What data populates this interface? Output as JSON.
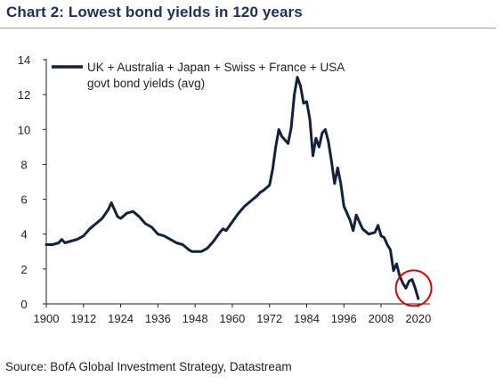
{
  "header": {
    "title": "Chart 2: Lowest bond yields in 120 years"
  },
  "footer": {
    "source": "Source: BofA Global Investment Strategy, Datastream"
  },
  "colors": {
    "series": "#14213d",
    "title": "#1e2f59",
    "highlight_circle": "#e00000"
  },
  "chart_data": {
    "type": "line",
    "title": "Chart 2: Lowest bond yields in 120 years",
    "xlabel": "",
    "ylabel": "",
    "xlim": [
      1900,
      2022
    ],
    "ylim": [
      0,
      14
    ],
    "x_ticks": [
      "1900",
      "1912",
      "1924",
      "1936",
      "1948",
      "1960",
      "1972",
      "1984",
      "1996",
      "2008",
      "2020"
    ],
    "y_ticks": [
      "0",
      "2",
      "4",
      "6",
      "8",
      "10",
      "12",
      "14"
    ],
    "grid": false,
    "legend": {
      "position": "top-left",
      "entries": [
        "UK + Australia + Japan + Swiss + France + USA",
        "govt bond yields (avg)"
      ]
    },
    "annotation": "circle-around-2020-low",
    "series": [
      {
        "name": "UK + Australia + Japan + Swiss + France + USA govt bond yields (avg)",
        "x": [
          1900,
          1902,
          1904,
          1905,
          1906,
          1908,
          1910,
          1912,
          1914,
          1916,
          1918,
          1920,
          1921,
          1922,
          1923,
          1924,
          1926,
          1928,
          1930,
          1931,
          1932,
          1934,
          1936,
          1938,
          1940,
          1942,
          1944,
          1946,
          1947,
          1948,
          1950,
          1952,
          1954,
          1956,
          1957,
          1958,
          1960,
          1962,
          1964,
          1966,
          1968,
          1969,
          1970,
          1972,
          1973,
          1974,
          1975,
          1976,
          1978,
          1979,
          1980,
          1981,
          1982,
          1983,
          1984,
          1985,
          1986,
          1987,
          1988,
          1989,
          1990,
          1991,
          1992,
          1993,
          1994,
          1995,
          1996,
          1998,
          1999,
          2000,
          2002,
          2004,
          2006,
          2007,
          2008,
          2009,
          2010,
          2011,
          2012,
          2013,
          2014,
          2015,
          2016,
          2017,
          2018,
          2019,
          2020
        ],
        "y": [
          3.4,
          3.4,
          3.5,
          3.7,
          3.5,
          3.6,
          3.7,
          3.9,
          4.3,
          4.6,
          4.9,
          5.4,
          5.8,
          5.4,
          5.0,
          4.9,
          5.2,
          5.3,
          5.0,
          4.8,
          4.6,
          4.4,
          4.0,
          3.9,
          3.7,
          3.5,
          3.4,
          3.1,
          3.0,
          3.0,
          3.0,
          3.2,
          3.6,
          4.1,
          4.3,
          4.2,
          4.7,
          5.2,
          5.6,
          5.9,
          6.2,
          6.4,
          6.5,
          6.8,
          7.7,
          9.0,
          10.0,
          9.6,
          9.2,
          10.1,
          12.0,
          13.0,
          12.5,
          11.5,
          11.6,
          10.6,
          8.5,
          9.5,
          9.0,
          9.8,
          10.0,
          9.3,
          8.2,
          6.9,
          7.8,
          6.9,
          5.6,
          4.8,
          4.2,
          5.1,
          4.3,
          4.0,
          4.1,
          4.5,
          3.9,
          3.8,
          3.4,
          3.1,
          1.9,
          2.3,
          1.6,
          1.2,
          0.9,
          1.3,
          1.4,
          0.9,
          0.3
        ]
      }
    ]
  }
}
